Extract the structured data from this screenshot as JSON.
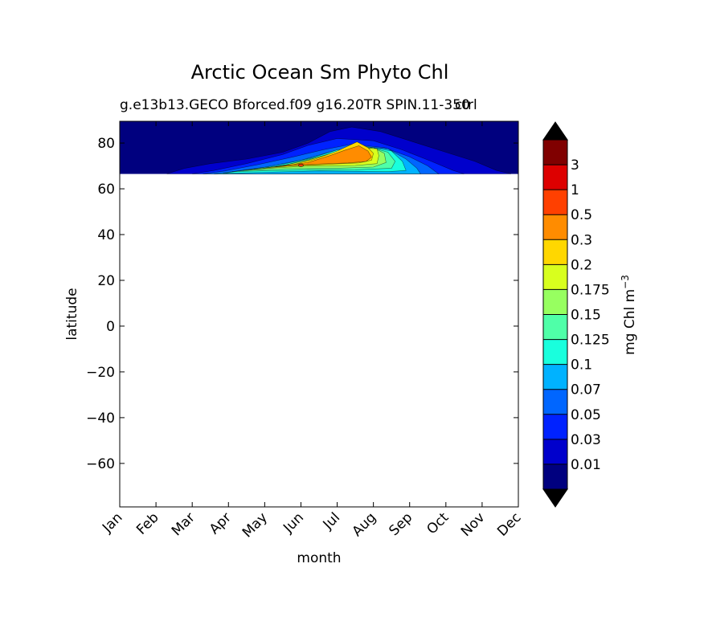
{
  "chart_data": {
    "type": "heatmap",
    "title": "Arctic Ocean Sm Phyto Chl",
    "subtitle_left": "g.e13b13.GECO Bforced.f09 g16.20TR SPIN.11-350",
    "subtitle_right": "ctrl",
    "xlabel": "month",
    "ylabel": "latitude",
    "x_ticklabels": [
      "Jan",
      "Feb",
      "Mar",
      "Apr",
      "May",
      "Jun",
      "Jul",
      "Aug",
      "Sep",
      "Oct",
      "Nov",
      "Dec"
    ],
    "y_ticks": [
      80,
      60,
      40,
      20,
      0,
      -20,
      -40,
      -60
    ],
    "y_ticklabels": [
      "80",
      "60",
      "40",
      "20",
      "0",
      "−20",
      "−40",
      "−60"
    ],
    "xlim": [
      1,
      12
    ],
    "ylim": [
      -79,
      89.5
    ],
    "data_lat_range": [
      66.5,
      89.5
    ],
    "colorbar": {
      "label": "mg Chl m",
      "label_exponent": "−3",
      "levels": [
        "0.01",
        "0.03",
        "0.05",
        "0.07",
        "0.1",
        "0.125",
        "0.15",
        "0.175",
        "0.2",
        "0.3",
        "0.5",
        "1",
        "3"
      ],
      "colors": [
        "#00007f",
        "#0000cc",
        "#0022ff",
        "#0066ff",
        "#00b2ff",
        "#19ffdd",
        "#4fffa8",
        "#97ff60",
        "#d8ff1e",
        "#ffd700",
        "#ff8c00",
        "#ff4000",
        "#dd0000",
        "#800000"
      ],
      "under_color": "#000000",
      "over_color": "#000000",
      "extend": "both"
    },
    "contour_region": {
      "note_levels": [
        0.01,
        0.03,
        0.05,
        0.07,
        0.1,
        0.125,
        0.15,
        0.175,
        0.2,
        0.3,
        0.5
      ],
      "peak_month": "Jul",
      "peak_value_class": "0.3-0.5"
    }
  }
}
